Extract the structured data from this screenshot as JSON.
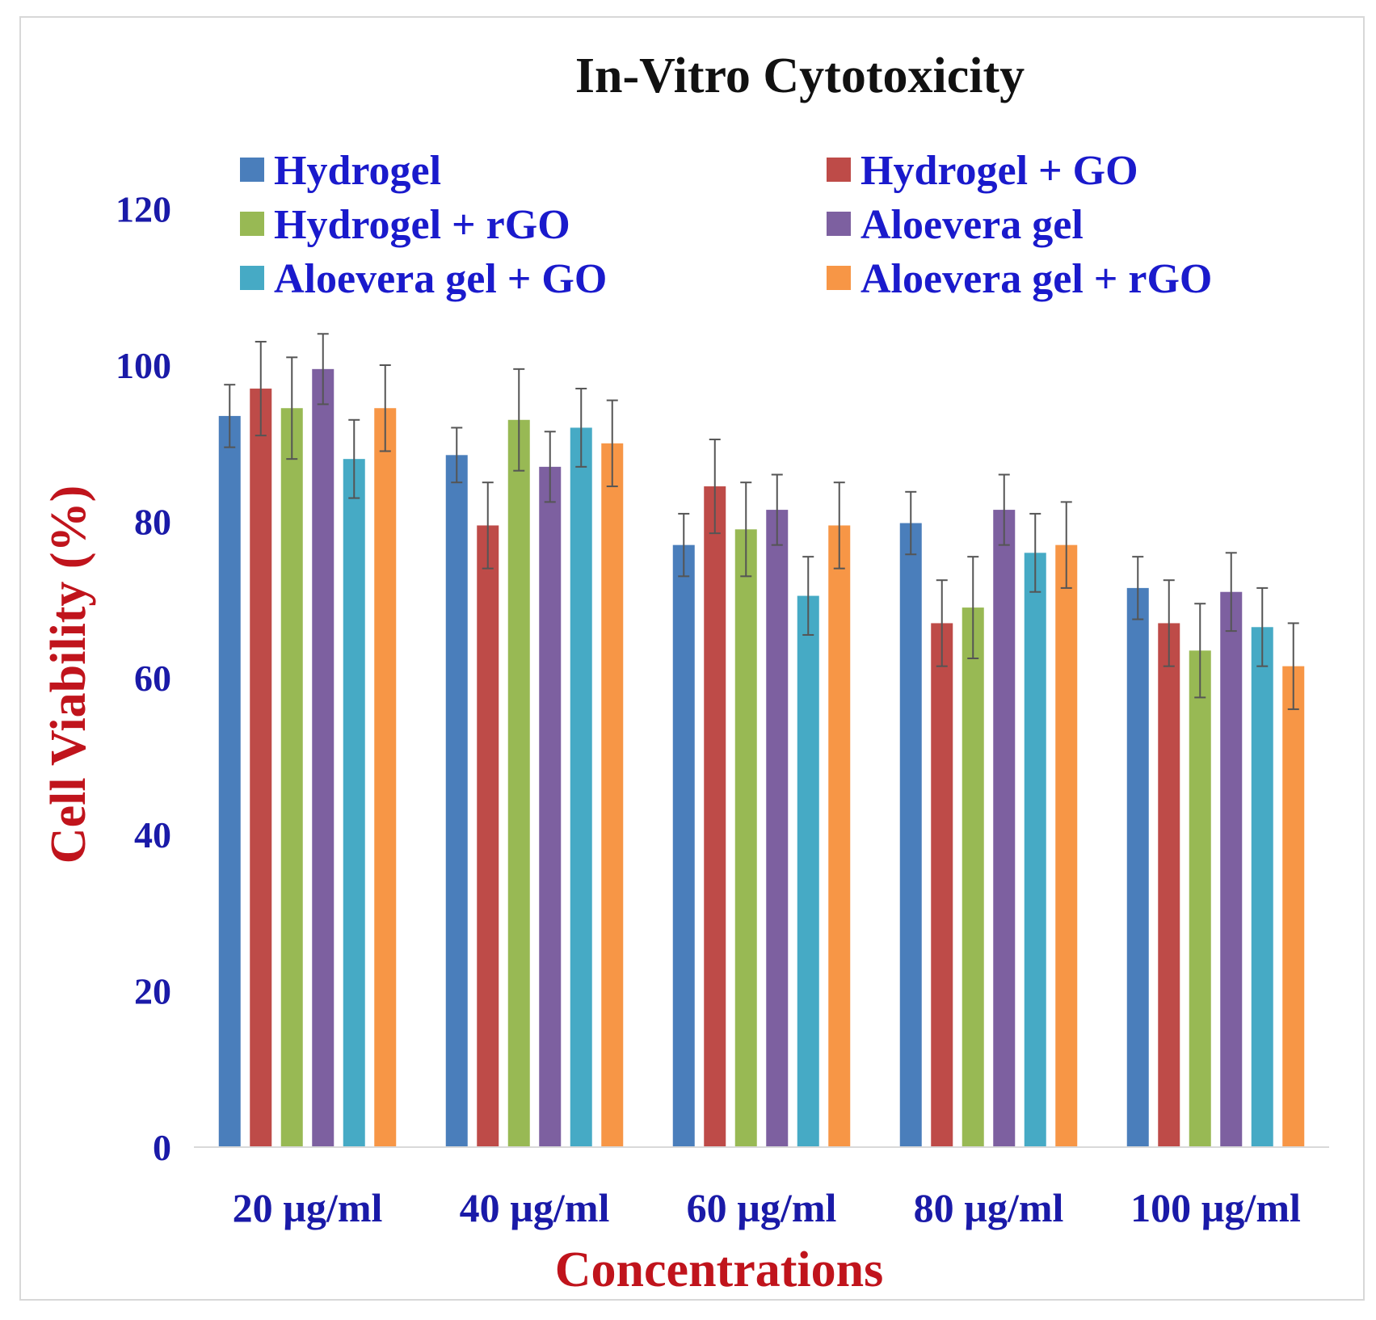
{
  "chart_data": {
    "type": "bar",
    "title": "In-Vitro Cytotoxicity",
    "xlabel": "Concentrations",
    "ylabel": "Cell Viability (%)",
    "ylim": [
      0,
      140
    ],
    "yticks": [
      0,
      20,
      40,
      60,
      80,
      100,
      120
    ],
    "categories": [
      "20 µg/ml",
      "40 µg/ml",
      "60 µg/ml",
      "80 µg/ml",
      "100 µg/ml"
    ],
    "legend_position": "top",
    "series": [
      {
        "name": "Hydrogel",
        "color": "#4a7ebb",
        "values": [
          93.5,
          88.5,
          77,
          79.8,
          71.5
        ],
        "errors": [
          4,
          3.5,
          4,
          4,
          4
        ]
      },
      {
        "name": "Hydrogel + GO",
        "color": "#be4b48",
        "values": [
          97,
          79.5,
          84.5,
          67,
          67
        ],
        "errors": [
          6,
          5.5,
          6,
          5.5,
          5.5
        ]
      },
      {
        "name": "Hydrogel + rGO",
        "color": "#98b954",
        "values": [
          94.5,
          93,
          79,
          69,
          63.5
        ],
        "errors": [
          6.5,
          6.5,
          6,
          6.5,
          6
        ]
      },
      {
        "name": "Aloevera gel",
        "color": "#7d60a0",
        "values": [
          99.5,
          87,
          81.5,
          81.5,
          71
        ],
        "errors": [
          4.5,
          4.5,
          4.5,
          4.5,
          5
        ]
      },
      {
        "name": "Aloevera gel + GO",
        "color": "#46aac5",
        "values": [
          88,
          92,
          70.5,
          76,
          66.5
        ],
        "errors": [
          5,
          5,
          5,
          5,
          5
        ]
      },
      {
        "name": "Aloevera gel + rGO",
        "color": "#f79646",
        "values": [
          94.5,
          90,
          79.5,
          77,
          61.5
        ],
        "errors": [
          5.5,
          5.5,
          5.5,
          5.5,
          5.5
        ]
      }
    ]
  },
  "colors": {
    "title": "#111111",
    "legend_text": "#1a1acc",
    "tick_text": "#1a1aa8",
    "axis_label": "#c0141c",
    "axis_line": "#d9d9d9",
    "error_bar": "#555555"
  }
}
